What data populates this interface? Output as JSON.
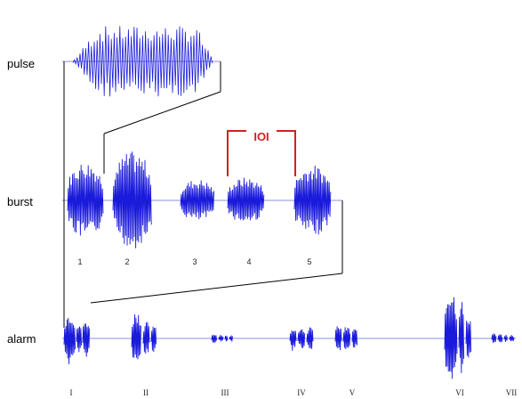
{
  "colors": {
    "waveform": "#1a1adb",
    "baseline": "#8c8ce8",
    "connector": "#000000",
    "ioi_bracket": "#d42020",
    "background": "#ffffff"
  },
  "rows": {
    "pulse_label": "pulse",
    "burst_label": "burst",
    "alarm_label": "alarm"
  },
  "ioi": {
    "label": "IOI"
  },
  "burst_numbers": [
    "1",
    "2",
    "3",
    "4",
    "5"
  ],
  "alarm_numerals": [
    "I",
    "II",
    "III",
    "IV",
    "V",
    "VI",
    "VII"
  ]
}
